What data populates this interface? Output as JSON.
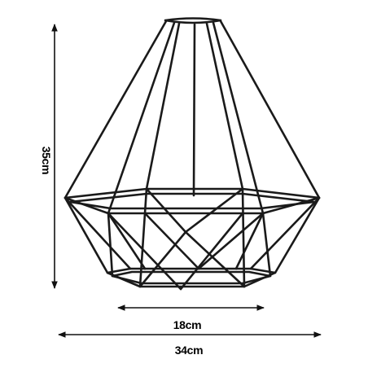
{
  "dimensions": {
    "height_label": "35cm",
    "bottom_width_label": "18cm",
    "total_width_label": "34cm"
  },
  "colors": {
    "wire": "#1a1a1a",
    "arrow": "#111111",
    "background": "#ffffff"
  }
}
